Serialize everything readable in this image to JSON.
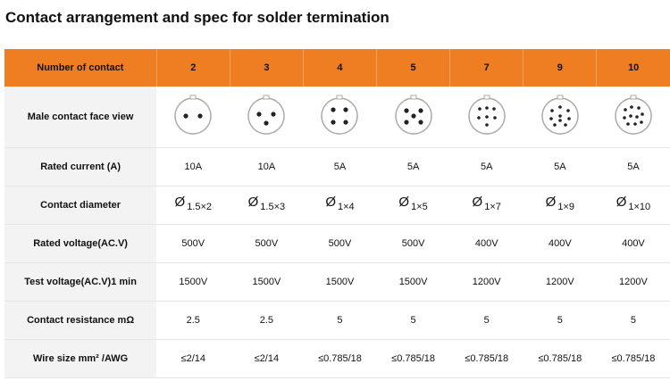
{
  "header": {
    "title": "Contact arrangement and spec for solder termination"
  },
  "table": {
    "header": [
      "Number of contact",
      "2",
      "3",
      "4",
      "5",
      "7",
      "9",
      "10"
    ],
    "face_view_label": "Male contact face view",
    "diameter_symbol": "Ø",
    "rows": [
      {
        "label": "Rated current (A)",
        "cells": [
          "10A",
          "10A",
          "5A",
          "5A",
          "5A",
          "5A",
          "5A"
        ]
      },
      {
        "label": "Contact diameter",
        "cells": [
          "1.5×2",
          "1.5×3",
          "1×4",
          "1×5",
          "1×7",
          "1×9",
          "1×10"
        ]
      },
      {
        "label": "Rated voltage(AC.V)",
        "cells": [
          "500V",
          "500V",
          "500V",
          "500V",
          "400V",
          "400V",
          "400V"
        ]
      },
      {
        "label": "Test voltage(AC.V)1 min",
        "cells": [
          "1500V",
          "1500V",
          "1500V",
          "1500V",
          "1200V",
          "1200V",
          "1200V"
        ]
      },
      {
        "label": "Contact resistance mΩ",
        "cells": [
          "2.5",
          "2.5",
          "5",
          "5",
          "5",
          "5",
          "5"
        ]
      },
      {
        "label": "Wire size mm² /AWG",
        "cells": [
          "≤2/14",
          "≤2/14",
          "≤0.785/18",
          "≤0.785/18",
          "≤0.785/18",
          "≤0.785/18",
          "≤0.785/18"
        ]
      }
    ]
  }
}
